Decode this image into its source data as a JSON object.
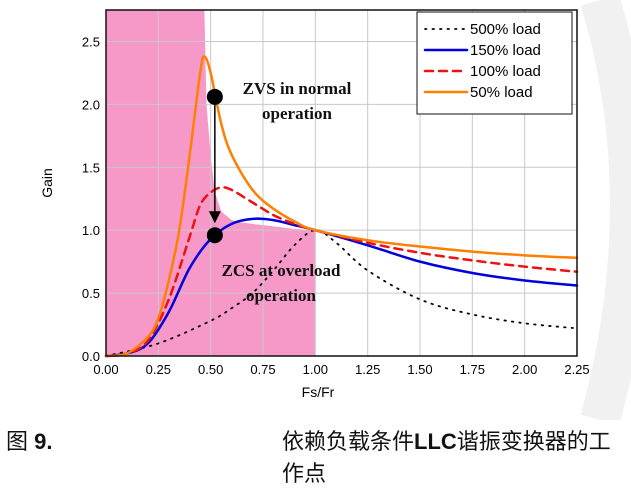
{
  "chart_data": {
    "type": "line",
    "xlabel": "Fs/Fr",
    "ylabel": "Gain",
    "xlim": [
      0,
      2.25
    ],
    "ylim": [
      0,
      2.75
    ],
    "xticks": [
      "0.00",
      "0.25",
      "0.50",
      "0.75",
      "1.00",
      "1.25",
      "1.50",
      "1.75",
      "2.00",
      "2.25"
    ],
    "yticks": [
      "0.0",
      "0.5",
      "1.0",
      "1.5",
      "2.0",
      "2.5"
    ],
    "grid": true,
    "legend_position": "top-right",
    "series": [
      {
        "name": "500% load",
        "color": "#000000",
        "style": "dotted",
        "x": [
          0,
          0.25,
          0.5,
          0.6,
          0.7,
          0.8,
          0.9,
          1.0,
          1.1,
          1.25,
          1.5,
          1.75,
          2.0,
          2.25
        ],
        "y": [
          0,
          0.1,
          0.28,
          0.38,
          0.5,
          0.68,
          0.88,
          1.0,
          0.9,
          0.68,
          0.45,
          0.33,
          0.26,
          0.22
        ]
      },
      {
        "name": "150% load",
        "color": "#0000dd",
        "style": "solid",
        "x": [
          0,
          0.1,
          0.2,
          0.3,
          0.4,
          0.5,
          0.6,
          0.7,
          0.8,
          0.9,
          1.0,
          1.25,
          1.5,
          1.75,
          2.0,
          2.25
        ],
        "y": [
          0,
          0.02,
          0.1,
          0.35,
          0.7,
          0.93,
          1.05,
          1.09,
          1.08,
          1.04,
          1.0,
          0.88,
          0.75,
          0.66,
          0.6,
          0.56
        ]
      },
      {
        "name": "100% load",
        "color": "#ee1111",
        "style": "dashed",
        "x": [
          0,
          0.1,
          0.2,
          0.3,
          0.4,
          0.45,
          0.5,
          0.55,
          0.6,
          0.7,
          0.8,
          0.9,
          1.0,
          1.25,
          1.5,
          1.75,
          2.0,
          2.25
        ],
        "y": [
          0,
          0.02,
          0.12,
          0.45,
          0.95,
          1.2,
          1.3,
          1.34,
          1.32,
          1.22,
          1.12,
          1.05,
          1.0,
          0.9,
          0.82,
          0.76,
          0.71,
          0.67
        ]
      },
      {
        "name": "50% load",
        "color": "#ff8000",
        "style": "solid",
        "x": [
          0,
          0.1,
          0.2,
          0.25,
          0.3,
          0.35,
          0.4,
          0.45,
          0.47,
          0.5,
          0.55,
          0.6,
          0.7,
          0.8,
          0.9,
          1.0,
          1.25,
          1.5,
          1.75,
          2.0,
          2.25
        ],
        "y": [
          0,
          0.02,
          0.15,
          0.3,
          0.6,
          1.0,
          1.6,
          2.25,
          2.38,
          2.25,
          1.85,
          1.6,
          1.32,
          1.17,
          1.07,
          1.0,
          0.92,
          0.87,
          0.83,
          0.8,
          0.78
        ]
      }
    ],
    "zcs_region": {
      "color": "#f799c8",
      "x": [
        0,
        0.47,
        0.48,
        0.5,
        0.52,
        0.55,
        0.6,
        0.65,
        0.7,
        0.8,
        0.9,
        1.0,
        1.0
      ],
      "y": [
        2.75,
        2.75,
        2.0,
        1.6,
        1.3,
        1.15,
        1.08,
        1.06,
        1.05,
        1.03,
        1.01,
        1.0,
        0
      ]
    },
    "annotations": [
      {
        "text_lines": [
          "ZVS in normal",
          "operation"
        ],
        "point": [
          0.52,
          2.06
        ]
      },
      {
        "text_lines": [
          "ZCS at overload",
          "operation"
        ],
        "point": [
          0.52,
          0.96
        ]
      }
    ]
  },
  "caption": {
    "figure_label": "图 ",
    "figure_number": "9.",
    "text_prefix": "依赖负载条件",
    "text_bold": "LLC",
    "text_suffix": "谐振变换器的工作点"
  }
}
